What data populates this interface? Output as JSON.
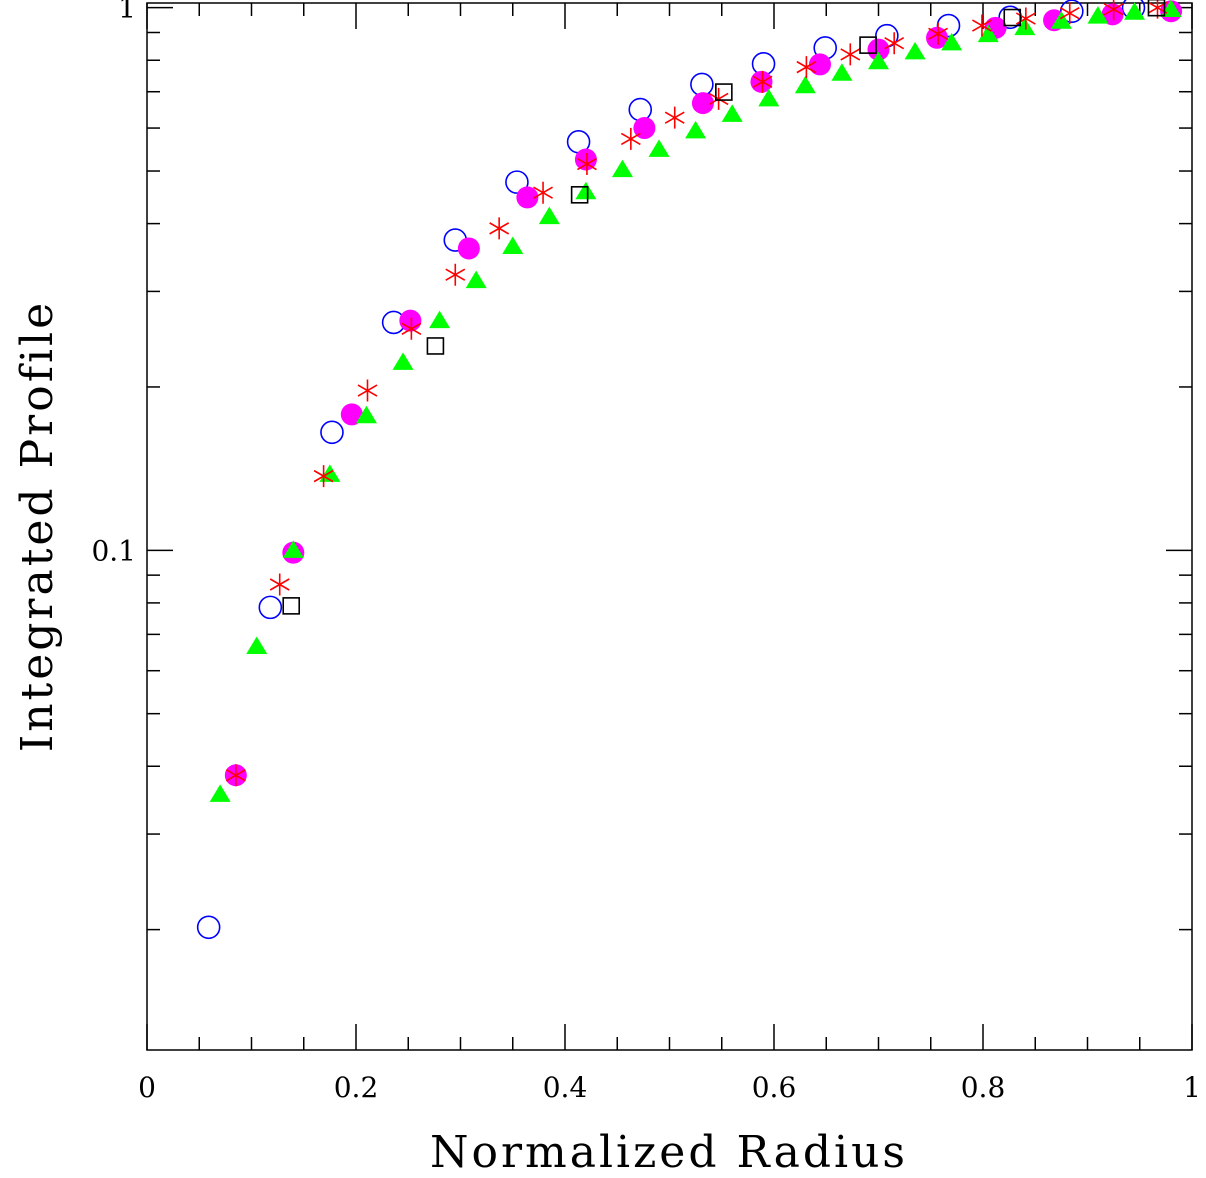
{
  "chart_data": {
    "type": "scatter",
    "title": "",
    "xlabel": "Normalized Radius",
    "ylabel": "Integrated Profile",
    "xlim": [
      0,
      1
    ],
    "ylim": [
      0.012,
      1.02
    ],
    "yscale": "log",
    "grid": false,
    "x_tick_labels": [
      "0",
      "0.2",
      "0.4",
      "0.6",
      "0.8",
      "1"
    ],
    "y_tick_labels": [
      "0.1",
      "1"
    ],
    "series": [
      {
        "marker": "open-circle",
        "color": "#0000ff",
        "x": [
          0.059,
          0.118,
          0.177,
          0.236,
          0.295,
          0.354,
          0.413,
          0.472,
          0.531,
          0.59,
          0.649,
          0.708,
          0.767,
          0.826,
          0.885,
          0.944
        ],
        "y": [
          0.0202,
          0.0785,
          0.165,
          0.263,
          0.373,
          0.477,
          0.566,
          0.649,
          0.722,
          0.788,
          0.843,
          0.888,
          0.927,
          0.96,
          0.985,
          1.0
        ]
      },
      {
        "marker": "filled-circle",
        "color": "#ff00ff",
        "x": [
          0.085,
          0.14,
          0.196,
          0.252,
          0.308,
          0.364,
          0.42,
          0.476,
          0.532,
          0.588,
          0.644,
          0.7,
          0.756,
          0.812,
          0.868,
          0.924,
          0.98
        ],
        "y": [
          0.0385,
          0.099,
          0.178,
          0.265,
          0.36,
          0.447,
          0.525,
          0.6,
          0.667,
          0.73,
          0.786,
          0.837,
          0.88,
          0.918,
          0.948,
          0.972,
          0.985
        ]
      },
      {
        "marker": "filled-triangle",
        "color": "#00ff00",
        "x": [
          0.07,
          0.105,
          0.14,
          0.175,
          0.21,
          0.245,
          0.28,
          0.315,
          0.35,
          0.385,
          0.42,
          0.455,
          0.49,
          0.525,
          0.56,
          0.595,
          0.63,
          0.665,
          0.7,
          0.735,
          0.77,
          0.805,
          0.84,
          0.875,
          0.91,
          0.945,
          0.98
        ],
        "y": [
          0.0355,
          0.0665,
          0.1,
          0.138,
          0.177,
          0.222,
          0.265,
          0.314,
          0.363,
          0.412,
          0.458,
          0.503,
          0.548,
          0.593,
          0.636,
          0.679,
          0.718,
          0.757,
          0.795,
          0.829,
          0.861,
          0.892,
          0.919,
          0.944,
          0.965,
          0.981,
          0.992
        ]
      },
      {
        "marker": "asterisk",
        "color": "#ff0000",
        "x": [
          0.085,
          0.127,
          0.169,
          0.211,
          0.253,
          0.295,
          0.337,
          0.379,
          0.421,
          0.463,
          0.505,
          0.547,
          0.589,
          0.631,
          0.673,
          0.715,
          0.757,
          0.799,
          0.841,
          0.883,
          0.925,
          0.967
        ],
        "y": [
          0.0385,
          0.0865,
          0.137,
          0.197,
          0.256,
          0.322,
          0.392,
          0.456,
          0.515,
          0.573,
          0.627,
          0.679,
          0.73,
          0.777,
          0.82,
          0.86,
          0.895,
          0.927,
          0.955,
          0.977,
          0.993,
          1.0
        ]
      },
      {
        "marker": "open-square",
        "color": "#000000",
        "x": [
          0.138,
          0.276,
          0.414,
          0.552,
          0.69,
          0.828,
          0.966
        ],
        "y": [
          0.079,
          0.238,
          0.452,
          0.699,
          0.853,
          0.959,
          1.0
        ]
      }
    ]
  }
}
